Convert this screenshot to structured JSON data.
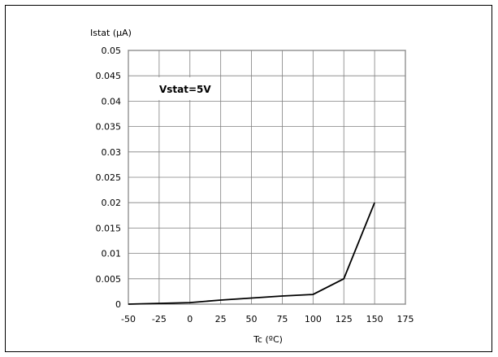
{
  "chart_data": {
    "type": "line",
    "ylabel": "Istat (µA)",
    "xlabel": "Tc (ºC)",
    "annotation": "Vstat=5V",
    "xlim": [
      -50,
      175
    ],
    "ylim": [
      0,
      0.05
    ],
    "x_ticks": [
      "-50",
      "-25",
      "0",
      "25",
      "50",
      "75",
      "100",
      "125",
      "150",
      "175"
    ],
    "y_ticks": [
      "0",
      "0.005",
      "0.01",
      "0.015",
      "0.02",
      "0.025",
      "0.03",
      "0.035",
      "0.04",
      "0.045",
      "0.05"
    ],
    "grid": true,
    "series": [
      {
        "x": [
          -50,
          0,
          25,
          50,
          75,
          100,
          125,
          150
        ],
        "y": [
          0,
          0.0003,
          0.0008,
          0.0012,
          0.0016,
          0.0019,
          0.005,
          0.02
        ]
      }
    ]
  }
}
